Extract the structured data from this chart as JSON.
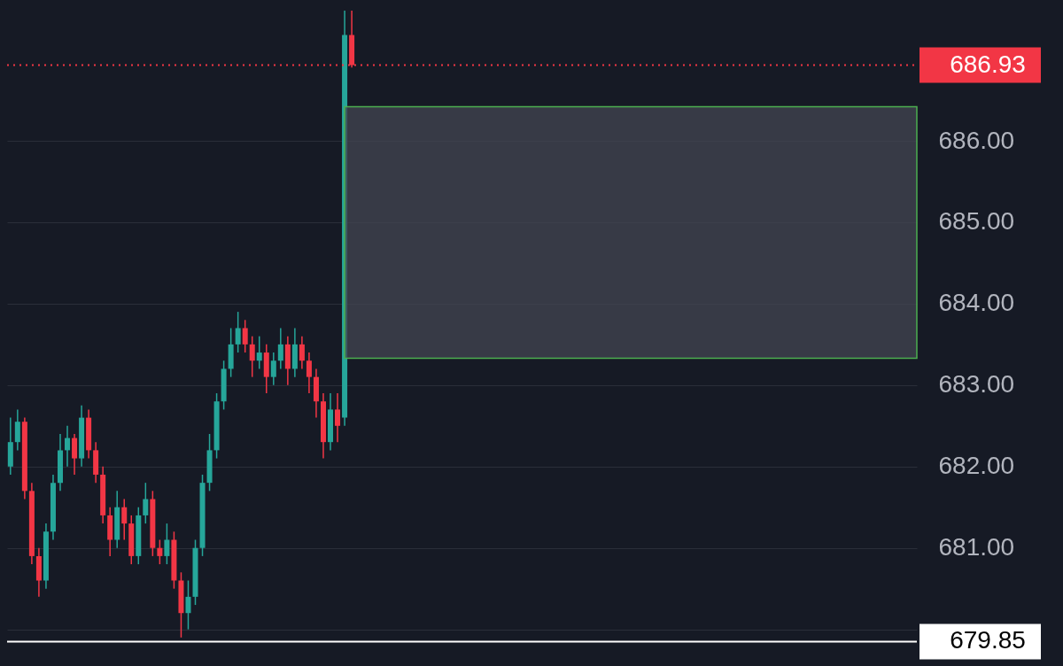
{
  "chart_data": {
    "type": "candlestick",
    "categories": [
      null,
      null,
      null,
      null,
      null,
      null,
      null,
      null,
      null,
      null,
      null,
      null,
      null,
      null,
      null,
      null,
      null,
      null,
      null,
      null,
      null,
      null,
      null,
      null,
      null,
      null,
      null,
      null,
      null,
      null,
      null,
      null,
      null,
      null,
      null,
      null,
      null,
      null,
      null,
      null,
      null,
      null,
      null,
      null,
      null,
      null,
      null,
      null,
      null,
      null,
      null,
      null,
      null,
      null,
      null,
      null,
      null,
      null,
      null,
      null,
      null,
      null,
      null,
      null,
      null,
      null,
      null,
      null,
      null,
      null,
      null,
      null,
      null,
      null,
      null,
      null,
      null,
      null,
      null,
      null,
      null,
      null,
      null,
      null,
      null,
      null,
      null,
      null,
      null,
      null,
      null,
      null,
      null,
      null,
      null,
      null,
      null,
      null,
      null,
      null,
      null,
      null,
      null,
      null,
      null,
      null,
      null,
      null,
      null,
      null,
      null,
      null,
      null,
      null,
      null,
      null,
      null,
      null,
      null,
      null,
      null,
      null,
      null,
      null,
      null,
      null,
      null,
      null
    ],
    "ohlc": [
      [
        682.0,
        682.6,
        681.9,
        682.3
      ],
      [
        682.3,
        682.7,
        682.2,
        682.55
      ],
      [
        682.55,
        682.6,
        681.6,
        681.7
      ],
      [
        681.7,
        681.8,
        680.8,
        680.9
      ],
      [
        680.9,
        681.0,
        680.4,
        680.6
      ],
      [
        680.6,
        681.3,
        680.5,
        681.2
      ],
      [
        681.2,
        681.9,
        681.1,
        681.8
      ],
      [
        681.8,
        682.4,
        681.7,
        682.2
      ],
      [
        682.2,
        682.5,
        682.0,
        682.35
      ],
      [
        682.35,
        682.4,
        681.9,
        682.1
      ],
      [
        682.1,
        682.75,
        682.0,
        682.6
      ],
      [
        682.6,
        682.7,
        682.1,
        682.2
      ],
      [
        682.2,
        682.3,
        681.8,
        681.9
      ],
      [
        681.9,
        682.0,
        681.3,
        681.4
      ],
      [
        681.4,
        681.5,
        680.9,
        681.1
      ],
      [
        681.1,
        681.7,
        681.0,
        681.5
      ],
      [
        681.5,
        681.6,
        681.1,
        681.3
      ],
      [
        681.3,
        681.4,
        680.8,
        680.9
      ],
      [
        680.9,
        681.5,
        680.8,
        681.4
      ],
      [
        681.4,
        681.8,
        681.3,
        681.6
      ],
      [
        681.6,
        681.7,
        680.9,
        681.0
      ],
      [
        681.0,
        681.1,
        680.8,
        680.9
      ],
      [
        680.9,
        681.3,
        680.8,
        681.1
      ],
      [
        681.1,
        681.2,
        680.5,
        680.6
      ],
      [
        680.6,
        680.7,
        679.9,
        680.2
      ],
      [
        680.2,
        680.6,
        680.0,
        680.4
      ],
      [
        680.4,
        681.1,
        680.3,
        681.0
      ],
      [
        681.0,
        681.9,
        680.9,
        681.8
      ],
      [
        681.8,
        682.4,
        681.7,
        682.2
      ],
      [
        682.2,
        682.9,
        682.1,
        682.8
      ],
      [
        682.8,
        683.3,
        682.7,
        683.2
      ],
      [
        683.2,
        683.7,
        683.1,
        683.5
      ],
      [
        683.5,
        683.9,
        683.4,
        683.7
      ],
      [
        683.7,
        683.8,
        683.4,
        683.5
      ],
      [
        683.5,
        683.6,
        683.1,
        683.3
      ],
      [
        683.3,
        683.6,
        683.2,
        683.4
      ],
      [
        683.4,
        683.5,
        682.9,
        683.1
      ],
      [
        683.1,
        683.4,
        683.0,
        683.3
      ],
      [
        683.3,
        683.7,
        683.2,
        683.5
      ],
      [
        683.5,
        683.6,
        683.0,
        683.2
      ],
      [
        683.2,
        683.7,
        683.1,
        683.5
      ],
      [
        683.5,
        683.6,
        683.2,
        683.3
      ],
      [
        683.3,
        683.4,
        682.9,
        683.1
      ],
      [
        683.1,
        683.2,
        682.6,
        682.8
      ],
      [
        682.8,
        682.9,
        682.1,
        682.3
      ],
      [
        682.3,
        682.9,
        682.2,
        682.7
      ],
      [
        682.7,
        682.9,
        682.3,
        682.5
      ],
      [
        682.6,
        687.6,
        682.5,
        687.3
      ],
      [
        687.3,
        687.6,
        686.9,
        686.93
      ],
      null,
      null,
      null,
      null,
      null,
      null,
      null,
      null,
      null,
      null,
      null,
      null,
      null,
      null,
      null,
      null,
      null,
      null,
      null,
      null,
      null,
      null,
      null,
      null,
      null,
      null,
      null,
      null,
      null,
      null,
      null,
      null,
      null,
      null,
      null,
      null,
      null,
      null,
      null,
      null,
      null,
      null,
      null,
      null,
      null,
      null,
      null,
      null,
      null,
      null,
      null,
      null,
      null,
      null,
      null,
      null,
      null,
      null,
      null,
      null,
      null,
      null,
      null,
      null,
      null,
      null,
      null,
      null,
      null,
      null,
      null,
      null,
      null,
      null,
      null,
      null,
      null,
      null,
      null
    ],
    "colors": [
      "#26a69a",
      "#26a69a",
      "#f23645",
      "#f23645",
      "#f23645",
      "#26a69a",
      "#26a69a",
      "#26a69a",
      "#26a69a",
      "#f23645",
      "#26a69a",
      "#f23645",
      "#f23645",
      "#f23645",
      "#f23645",
      "#26a69a",
      "#f23645",
      "#f23645",
      "#26a69a",
      "#26a69a",
      "#f23645",
      "#f23645",
      "#26a69a",
      "#f23645",
      "#f23645",
      "#26a69a",
      "#26a69a",
      "#26a69a",
      "#26a69a",
      "#26a69a",
      "#26a69a",
      "#26a69a",
      "#26a69a",
      "#f23645",
      "#f23645",
      "#26a69a",
      "#f23645",
      "#26a69a",
      "#26a69a",
      "#f23645",
      "#26a69a",
      "#f23645",
      "#f23645",
      "#f23645",
      "#f23645",
      "#26a69a",
      "#f23645",
      "#26a69a",
      "#f23645",
      null,
      null,
      null,
      null,
      null,
      null,
      null,
      null,
      null,
      null,
      null,
      null,
      null,
      null,
      null,
      null,
      null,
      null,
      null,
      null,
      null,
      null,
      null,
      null,
      null,
      null,
      null,
      null,
      null,
      null,
      null,
      null,
      null,
      null,
      null,
      null,
      null,
      null,
      null,
      null,
      null,
      null,
      null,
      null,
      null,
      null,
      null,
      null,
      null,
      null,
      null,
      null,
      null,
      null,
      null,
      null,
      null,
      null,
      null,
      null,
      null,
      null,
      null,
      null,
      null,
      null,
      null,
      null,
      null,
      null,
      null,
      null,
      null,
      null,
      null,
      null,
      null,
      null,
      null
    ],
    "ylim": [
      679.55,
      687.73
    ],
    "yticks": [
      {
        "value": 680,
        "label": null
      },
      {
        "value": 681,
        "label": "681.00"
      },
      {
        "value": 682,
        "label": "682.00"
      },
      {
        "value": 683,
        "label": "683.00"
      },
      {
        "value": 684,
        "label": "684.00"
      },
      {
        "value": 685,
        "label": "685.00"
      },
      {
        "value": 686,
        "label": "686.00"
      }
    ],
    "grid": "y",
    "ref_lines": [
      {
        "axis": "y",
        "value": 686.93,
        "label": "686.93",
        "color": "#f23645",
        "line_style": "dotted"
      },
      {
        "axis": "y",
        "value": 679.85,
        "label": "679.85",
        "color": "#ffffff",
        "line_style": "solid"
      }
    ],
    "bands": [
      {
        "axis": "y",
        "from": 683.33,
        "to": 686.42,
        "color": "#434651"
      }
    ]
  }
}
